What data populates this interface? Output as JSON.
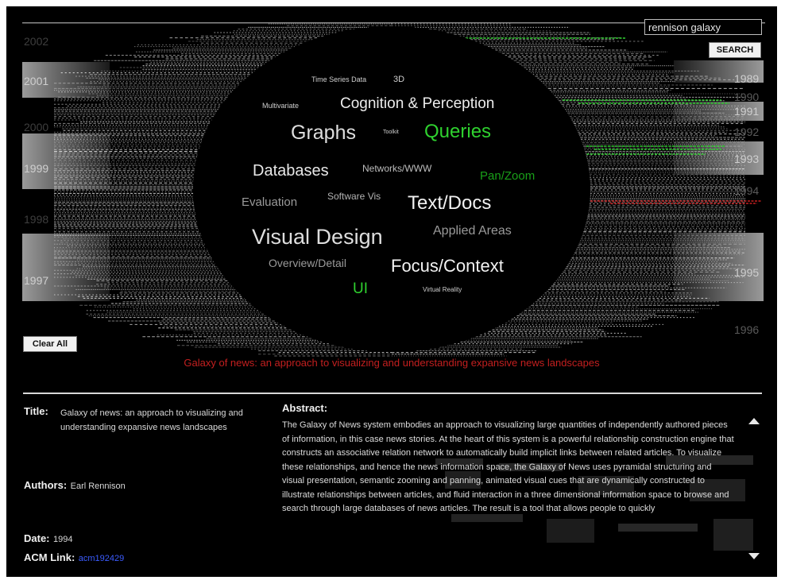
{
  "search": {
    "value": "rennison galaxy",
    "button_label": "SEARCH"
  },
  "clear_label": "Clear All",
  "years_left": [
    {
      "label": "2002",
      "tone": "dim"
    },
    {
      "label": "2001",
      "tone": "bright"
    },
    {
      "label": "2000",
      "tone": "dim"
    },
    {
      "label": "1999",
      "tone": "bright"
    },
    {
      "label": "1998",
      "tone": "dim"
    },
    {
      "label": "1997",
      "tone": "bright"
    }
  ],
  "years_right": [
    {
      "label": "1989",
      "tone": "bright"
    },
    {
      "label": "1990",
      "tone": "mid"
    },
    {
      "label": "1991",
      "tone": "bright"
    },
    {
      "label": "1992",
      "tone": "mid"
    },
    {
      "label": "1993",
      "tone": "bright"
    },
    {
      "label": "1994",
      "tone": "mid"
    },
    {
      "label": "1995",
      "tone": "bright"
    },
    {
      "label": "1996",
      "tone": "mid"
    }
  ],
  "topics": [
    {
      "label": "Time Series Data",
      "color": "#cfcfcf"
    },
    {
      "label": "3D",
      "color": "#cfcfcf"
    },
    {
      "label": "Multivariate",
      "color": "#cfcfcf"
    },
    {
      "label": "Cognition & Perception",
      "color": "#ececec"
    },
    {
      "label": "Graphs",
      "color": "#dedede"
    },
    {
      "label": "Toolkit",
      "color": "#cfcfcf"
    },
    {
      "label": "Queries",
      "color": "#2fd12f"
    },
    {
      "label": "Databases",
      "color": "#e8e8e8"
    },
    {
      "label": "Networks/WWW",
      "color": "#bdbdbd"
    },
    {
      "label": "Pan/Zoom",
      "color": "#19a019"
    },
    {
      "label": "Evaluation",
      "color": "#9a9a9a"
    },
    {
      "label": "Software Vis",
      "color": "#b3b3b3"
    },
    {
      "label": "Text/Docs",
      "color": "#f2f2f2"
    },
    {
      "label": "Visual Design",
      "color": "#dedede"
    },
    {
      "label": "Applied Areas",
      "color": "#9a9a9a"
    },
    {
      "label": "Overview/Detail",
      "color": "#9a9a9a"
    },
    {
      "label": "Focus/Context",
      "color": "#f2f2f2"
    },
    {
      "label": "UI",
      "color": "#2fd12f"
    },
    {
      "label": "Virtual Reality",
      "color": "#cfcfcf"
    }
  ],
  "selected_title": "Galaxy of news: an approach to visualizing and understanding expansive news landscapes",
  "details": {
    "title_label": "Title:",
    "title_value": "Galaxy of news: an approach to visualizing and understanding expansive news landscapes",
    "authors_label": "Authors:",
    "authors_value": "Earl Rennison",
    "date_label": "Date:",
    "date_value": "1994",
    "acm_label": "ACM Link:",
    "acm_value": "acm192429",
    "abstract_label": "Abstract:",
    "abstract_text": "The Galaxy of News system embodies an approach to visualizing large quantities of independently authored pieces of information, in this case news stories. At the heart of this system is a powerful relationship construction engine that constructs an associative relation network to automatically build implicit links between related articles. To visualize these relationships, and hence the news information space, the Galaxy of News uses pyramidal structuring and visual presentation, semantic zooming and panning, animated visual cues that are dynamically constructed to illustrate relationships between articles, and fluid interaction in a three dimensional information space to browse and search through large databases of news articles. The result is a tool that allows people to quickly"
  },
  "colors": {
    "background": "#000000",
    "highlight_green": "#2fd12f",
    "selection_red": "#c41f1f",
    "link_blue": "#3b5cff"
  }
}
